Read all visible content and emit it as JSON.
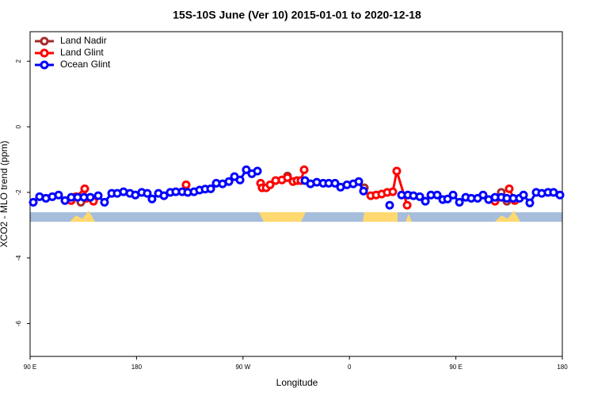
{
  "chart_data": {
    "type": "line",
    "title": "15S-10S June (Ver 10)   2015-01-01 to 2020-12-18",
    "x_label": "Longitude",
    "y_label": "XCO2 - MLO trend (ppm)",
    "xlim": [
      90,
      540
    ],
    "xticks": [
      {
        "value": 90,
        "label": "90 E"
      },
      180,
      {
        "value": 270,
        "label": "90 W"
      },
      {
        "value": 360,
        "label": "0"
      },
      {
        "value": 450,
        "label": "90 E"
      },
      {
        "value": 540,
        "label": "180"
      }
    ],
    "ylim": [
      -7,
      2.9
    ],
    "yticks": [
      2,
      0,
      -2,
      -4,
      -6
    ],
    "legend": "top-left",
    "series": [
      {
        "name": "Land Nadir",
        "color": "#a52a2a",
        "x": [
          132.9,
          307.6,
          372.6,
          488.4,
          493.1
        ],
        "values": [
          -2.3,
          -1.5,
          -1.86,
          -2.0,
          -2.27
        ]
      },
      {
        "name": "Land Glint",
        "color": "#ff0000",
        "x": [
          124.8,
          128.8,
          136.2,
          137.5,
          143.6,
          221.9,
          284.9,
          286.2,
          289.6,
          292.9,
          297.6,
          302.9,
          307.6,
          312.3,
          315.7,
          319,
          321.7,
          378,
          382.6,
          387.3,
          392,
          396.7,
          400,
          408.8,
          483.1,
          495.1,
          499.8
        ],
        "values": [
          -2.25,
          -2.13,
          -1.89,
          -2.18,
          -2.27,
          -1.77,
          -1.72,
          -1.86,
          -1.86,
          -1.77,
          -1.64,
          -1.62,
          -1.55,
          -1.67,
          -1.64,
          -1.64,
          -1.31,
          -2.1,
          -2.08,
          -2.05,
          -2.0,
          -1.98,
          -1.35,
          -2.39,
          -2.27,
          -1.89,
          -2.25
        ]
      },
      {
        "name": "Ocean Glint",
        "color": "#0000ff",
        "x": [
          92.7,
          98,
          103.4,
          108.8,
          114.1,
          119.5,
          124.8,
          130.2,
          135.5,
          140.9,
          147.6,
          152.9,
          159,
          163.7,
          169,
          174.4,
          179,
          184.4,
          189.1,
          193.1,
          198.5,
          203.2,
          208.5,
          213.2,
          218.6,
          223.3,
          228.6,
          233.3,
          238,
          242.7,
          247.4,
          252.7,
          258.1,
          262.8,
          267.5,
          272.8,
          277.5,
          282.2,
          322.4,
          327.1,
          332.4,
          337.8,
          342.5,
          347.8,
          352.5,
          357.9,
          363.2,
          367.9,
          371.9,
          394,
          404.1,
          409.4,
          414.1,
          419.5,
          424.2,
          428.9,
          434.2,
          438.9,
          443,
          447.6,
          453,
          458.3,
          463,
          468.4,
          473,
          477.7,
          483.1,
          488.4,
          493.1,
          498.5,
          503.8,
          507.2,
          512.5,
          517.9,
          522.6,
          527.9,
          532.6,
          538
        ],
        "values": [
          -2.3,
          -2.13,
          -2.18,
          -2.13,
          -2.08,
          -2.25,
          -2.15,
          -2.15,
          -2.15,
          -2.15,
          -2.1,
          -2.3,
          -2.03,
          -2.03,
          -1.98,
          -2.03,
          -2.08,
          -2.0,
          -2.03,
          -2.2,
          -2.03,
          -2.1,
          -2.0,
          -1.98,
          -1.98,
          -2.0,
          -1.98,
          -1.93,
          -1.9,
          -1.89,
          -1.72,
          -1.74,
          -1.67,
          -1.52,
          -1.62,
          -1.31,
          -1.43,
          -1.35,
          -1.64,
          -1.74,
          -1.69,
          -1.72,
          -1.72,
          -1.72,
          -1.84,
          -1.77,
          -1.74,
          -1.67,
          -1.96,
          -2.39,
          -2.08,
          -2.08,
          -2.1,
          -2.13,
          -2.27,
          -2.08,
          -2.08,
          -2.22,
          -2.2,
          -2.08,
          -2.3,
          -2.15,
          -2.18,
          -2.18,
          -2.08,
          -2.22,
          -2.15,
          -2.15,
          -2.18,
          -2.18,
          -2.18,
          -2.08,
          -2.32,
          -2.0,
          -2.03,
          -2.0,
          -2.0,
          -2.08
        ]
      }
    ]
  }
}
